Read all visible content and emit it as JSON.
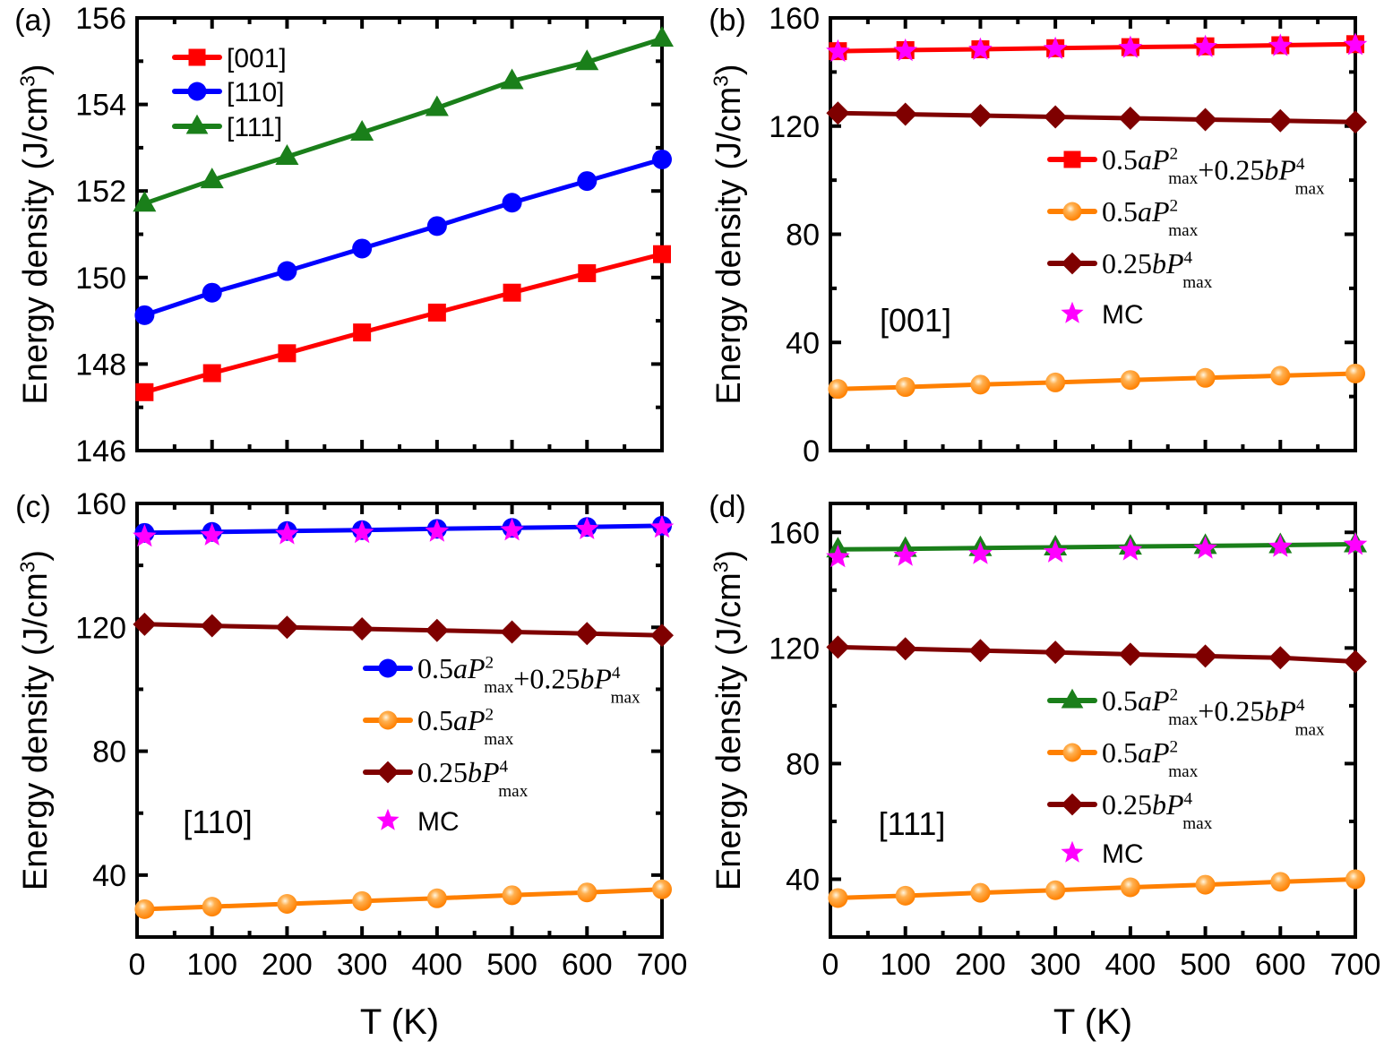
{
  "chart_data": [
    {
      "panel_label": "(a)",
      "type": "line",
      "xlabel": "",
      "ylabel": "Energy density (J/cm^3)",
      "xlim": [
        0,
        700
      ],
      "ylim": [
        146,
        156
      ],
      "xticks": [],
      "yticks": [
        146,
        148,
        150,
        152,
        154,
        156
      ],
      "x": [
        10,
        100,
        200,
        300,
        400,
        500,
        600,
        700
      ],
      "legend": "top-left",
      "annotation": "",
      "series": [
        {
          "name": "[001]",
          "color": "#ff0000",
          "marker": "square",
          "values": [
            147.35,
            147.79,
            148.25,
            148.73,
            149.19,
            149.65,
            150.1,
            150.54
          ]
        },
        {
          "name": "[110]",
          "color": "#0000ff",
          "marker": "circle",
          "values": [
            149.13,
            149.65,
            150.15,
            150.67,
            151.19,
            151.73,
            152.23,
            152.73
          ]
        },
        {
          "name": "[111]",
          "color": "#1a7f1a",
          "marker": "triangle",
          "values": [
            151.71,
            152.25,
            152.79,
            153.35,
            153.92,
            154.54,
            154.98,
            155.52
          ]
        }
      ]
    },
    {
      "panel_label": "(b)",
      "type": "line",
      "xlabel": "",
      "ylabel": "Energy density (J/cm^3)",
      "xlim": [
        0,
        700
      ],
      "ylim": [
        0,
        160
      ],
      "xticks": [],
      "yticks": [
        0,
        40,
        80,
        120,
        160
      ],
      "x": [
        10,
        100,
        200,
        300,
        400,
        500,
        600,
        700
      ],
      "legend": "center-right",
      "annotation": "[001]",
      "series": [
        {
          "name": "0.5aP^2_max+0.25bP^4_max",
          "color": "#ff0000",
          "marker": "square",
          "values": [
            147.7,
            148.1,
            148.4,
            148.8,
            149.2,
            149.5,
            149.9,
            150.3
          ]
        },
        {
          "name": "0.5aP^2_max",
          "color": "#ff8000",
          "marker": "ball",
          "values": [
            22.8,
            23.5,
            24.4,
            25.2,
            26.1,
            26.9,
            27.7,
            28.5
          ]
        },
        {
          "name": "0.25bP^4_max",
          "color": "#7f0000",
          "marker": "diamond",
          "values": [
            124.8,
            124.4,
            123.9,
            123.4,
            122.9,
            122.4,
            122.0,
            121.5
          ]
        },
        {
          "name": "MC",
          "color": "#ff00ff",
          "marker": "star",
          "line": false,
          "values": [
            147.5,
            147.8,
            148.2,
            148.5,
            148.9,
            149.2,
            149.6,
            150.0
          ]
        }
      ]
    },
    {
      "panel_label": "(c)",
      "type": "line",
      "xlabel": "T (K)",
      "ylabel": "Energy density (J/cm^3)",
      "xlim": [
        0,
        700
      ],
      "ylim": [
        20,
        160
      ],
      "xticks": [
        0,
        100,
        200,
        300,
        400,
        500,
        600,
        700
      ],
      "yticks": [
        40,
        80,
        120,
        160
      ],
      "x": [
        10,
        100,
        200,
        300,
        400,
        500,
        600,
        700
      ],
      "legend": "center-right",
      "annotation": "[110]",
      "series": [
        {
          "name": "0.5aP^2_max+0.25bP^4_max",
          "color": "#0000ff",
          "marker": "circle",
          "values": [
            150.5,
            150.8,
            151.1,
            151.4,
            151.8,
            152.1,
            152.4,
            152.8
          ]
        },
        {
          "name": "0.5aP^2_max",
          "color": "#ff8000",
          "marker": "ball",
          "values": [
            29.0,
            29.8,
            30.7,
            31.6,
            32.5,
            33.5,
            34.4,
            35.4
          ]
        },
        {
          "name": "0.25bP^4_max",
          "color": "#7f0000",
          "marker": "diamond",
          "values": [
            121.0,
            120.5,
            120.0,
            119.5,
            119.0,
            118.5,
            118.0,
            117.4
          ]
        },
        {
          "name": "MC",
          "color": "#ff00ff",
          "marker": "star",
          "line": false,
          "values": [
            149.3,
            149.7,
            150.1,
            150.5,
            150.9,
            151.3,
            151.7,
            152.2
          ]
        }
      ]
    },
    {
      "panel_label": "(d)",
      "type": "line",
      "xlabel": "T (K)",
      "ylabel": "Energy density (J/cm^3)",
      "xlim": [
        0,
        700
      ],
      "ylim": [
        20,
        170
      ],
      "xticks": [
        0,
        100,
        200,
        300,
        400,
        500,
        600,
        700
      ],
      "yticks": [
        40,
        80,
        120,
        160
      ],
      "x": [
        10,
        100,
        200,
        300,
        400,
        500,
        600,
        700
      ],
      "legend": "center-right",
      "annotation": "[111]",
      "series": [
        {
          "name": "0.5aP^2_max+0.25bP^4_max",
          "color": "#1a7f1a",
          "marker": "triangle",
          "values": [
            154.1,
            154.3,
            154.6,
            154.8,
            155.1,
            155.3,
            155.6,
            155.9
          ]
        },
        {
          "name": "0.5aP^2_max",
          "color": "#ff8000",
          "marker": "ball",
          "values": [
            33.5,
            34.3,
            35.3,
            36.2,
            37.2,
            38.1,
            39.1,
            40.0
          ]
        },
        {
          "name": "0.25bP^4_max",
          "color": "#7f0000",
          "marker": "diamond",
          "values": [
            120.3,
            119.7,
            119.1,
            118.5,
            117.8,
            117.2,
            116.6,
            115.3
          ]
        },
        {
          "name": "MC",
          "color": "#ff00ff",
          "marker": "star",
          "line": false,
          "values": [
            151.4,
            151.9,
            152.5,
            153.1,
            153.8,
            154.4,
            155.0,
            155.7
          ]
        }
      ]
    }
  ]
}
